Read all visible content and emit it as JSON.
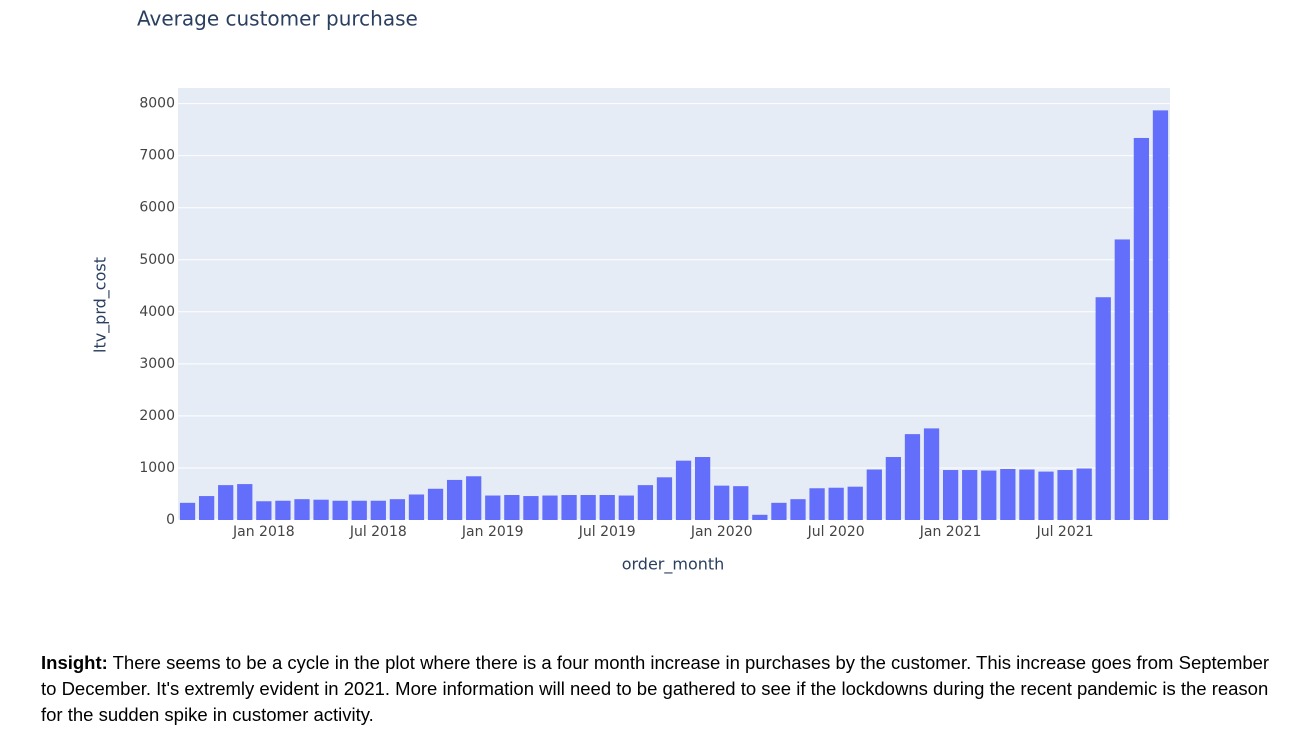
{
  "chart_data": {
    "type": "bar",
    "title": "Average customer purchase",
    "xlabel": "order_month",
    "ylabel": "ltv_prd_cost",
    "color": "#636efa",
    "grid": true,
    "x": [
      "2017-09",
      "2017-10",
      "2017-11",
      "2017-12",
      "2018-01",
      "2018-02",
      "2018-03",
      "2018-04",
      "2018-05",
      "2018-06",
      "2018-07",
      "2018-08",
      "2018-09",
      "2018-10",
      "2018-11",
      "2018-12",
      "2019-01",
      "2019-02",
      "2019-03",
      "2019-04",
      "2019-05",
      "2019-06",
      "2019-07",
      "2019-08",
      "2019-09",
      "2019-10",
      "2019-11",
      "2019-12",
      "2020-01",
      "2020-02",
      "2020-03",
      "2020-04",
      "2020-05",
      "2020-06",
      "2020-07",
      "2020-08",
      "2020-09",
      "2020-10",
      "2020-11",
      "2020-12",
      "2021-01",
      "2021-02",
      "2021-03",
      "2021-04",
      "2021-05",
      "2021-06",
      "2021-07",
      "2021-08",
      "2021-09",
      "2021-10",
      "2021-11",
      "2021-12"
    ],
    "values": [
      330,
      460,
      670,
      690,
      360,
      370,
      400,
      390,
      370,
      370,
      370,
      400,
      490,
      600,
      770,
      840,
      470,
      480,
      460,
      470,
      480,
      480,
      480,
      470,
      670,
      820,
      1140,
      1210,
      660,
      650,
      100,
      330,
      400,
      610,
      620,
      640,
      970,
      1210,
      1650,
      1760,
      960,
      960,
      950,
      980,
      970,
      930,
      960,
      990,
      4280,
      5390,
      7340,
      7870
    ],
    "ylim": [
      0,
      8300
    ],
    "yticks": [
      0,
      1000,
      2000,
      3000,
      4000,
      5000,
      6000,
      7000,
      8000
    ],
    "xticks": [
      {
        "value": "2018-01",
        "label": "Jan 2018"
      },
      {
        "value": "2018-07",
        "label": "Jul 2018"
      },
      {
        "value": "2019-01",
        "label": "Jan 2019"
      },
      {
        "value": "2019-07",
        "label": "Jul 2019"
      },
      {
        "value": "2020-01",
        "label": "Jan 2020"
      },
      {
        "value": "2020-07",
        "label": "Jul 2020"
      },
      {
        "value": "2021-01",
        "label": "Jan 2021"
      },
      {
        "value": "2021-07",
        "label": "Jul 2021"
      }
    ]
  },
  "insight": {
    "label": "Insight:",
    "text": "There seems to be a cycle in the plot where there is a four month increase in purchases by the customer. This increase goes from September to December. It's extremly evident in 2021. More information will need to be gathered to see if the lockdowns during the recent pandemic is the reason for the sudden spike in customer activity."
  }
}
